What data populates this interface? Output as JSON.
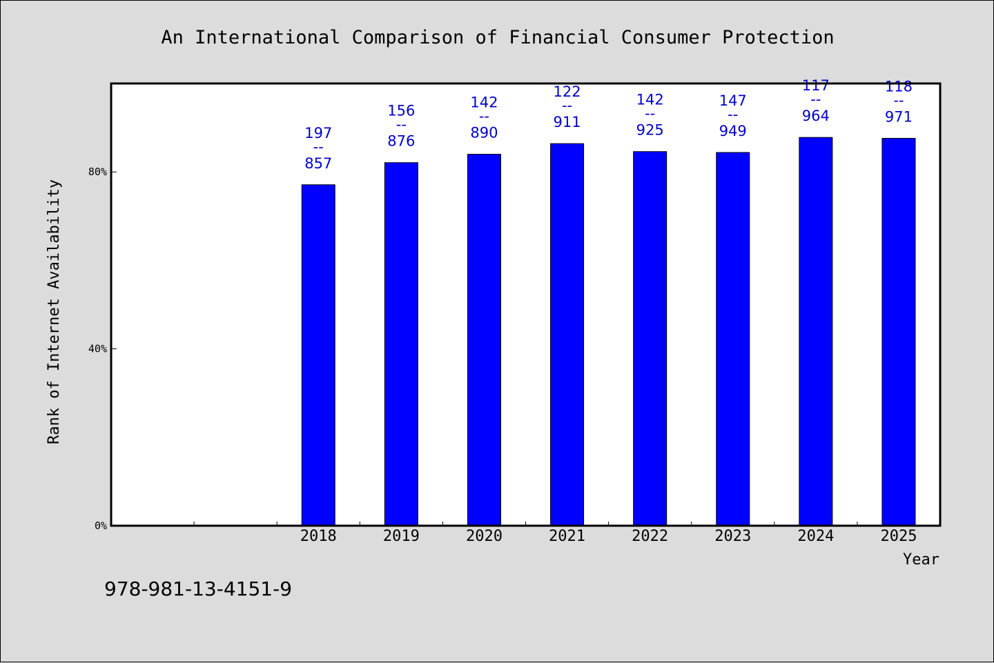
{
  "isbn": "978-981-13-4151-9",
  "chart_data": {
    "type": "bar",
    "title": "An International Comparison of Financial Consumer Protection",
    "xlabel": "Year",
    "ylabel": "Rank of Internet Availability",
    "categories": [
      "",
      "",
      "2018",
      "2019",
      "2020",
      "2021",
      "2022",
      "2023",
      "2024",
      "2025"
    ],
    "values": [
      null,
      null,
      77.1,
      82.1,
      84.0,
      86.4,
      84.6,
      84.4,
      87.8,
      87.6
    ],
    "data_labels": [
      null,
      null,
      [
        "197",
        "--",
        "857"
      ],
      [
        "156",
        "--",
        "876"
      ],
      [
        "142",
        "--",
        "890"
      ],
      [
        "122",
        "--",
        "911"
      ],
      [
        "142",
        "--",
        "925"
      ],
      [
        "147",
        "--",
        "949"
      ],
      [
        "117",
        "--",
        "964"
      ],
      [
        "118",
        "--",
        "971"
      ]
    ],
    "yticks": [
      {
        "value": 0,
        "label": "0%"
      },
      {
        "value": 40,
        "label": "40%"
      },
      {
        "value": 80,
        "label": "80%"
      }
    ],
    "ylim": [
      0,
      100
    ],
    "grid": false,
    "legend": "none",
    "bar_color": "#0000ff",
    "label_color": "#0000cc"
  }
}
